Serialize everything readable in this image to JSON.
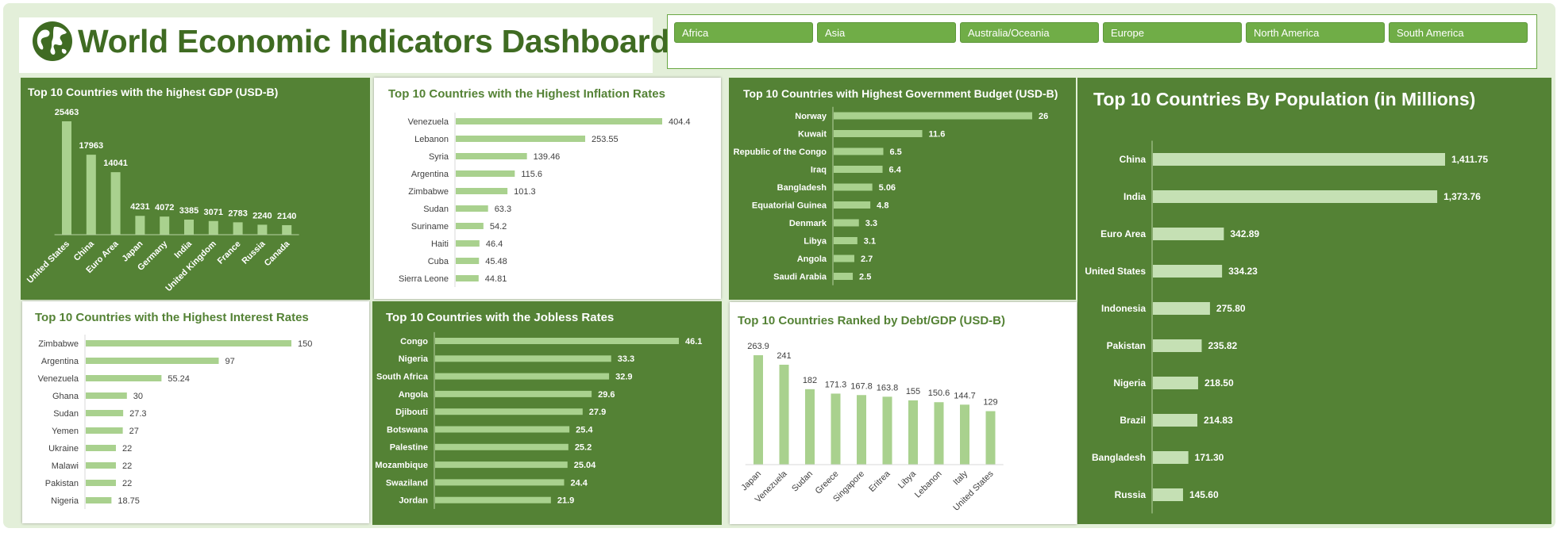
{
  "header": {
    "title": "World Economic Indicators Dashboard",
    "logo_icon": "globe-icon"
  },
  "slicer": {
    "items": [
      "Africa",
      "Asia",
      "Australia/Oceania",
      "Europe",
      "North America",
      "South America"
    ]
  },
  "colors": {
    "dark_panel": "#548235",
    "dark_bar": "#a9d18e",
    "light_bar": "#a9d18e",
    "light_title": "#548235",
    "population_bar": "#c5e0b4"
  },
  "chart_data": [
    {
      "id": "gdp",
      "type": "bar",
      "title": "Top 10 Countries with the highest GDP (USD-B)",
      "categories": [
        "United States",
        "China",
        "Euro Area",
        "Japan",
        "Germany",
        "India",
        "United Kingdom",
        "France",
        "Russia",
        "Canada"
      ],
      "values": [
        25463,
        17963,
        14041,
        4231,
        4072,
        3385,
        3071,
        2783,
        2240,
        2140
      ]
    },
    {
      "id": "inflation",
      "type": "bar",
      "orientation": "horizontal",
      "title": "Top 10 Countries with the Highest Inflation Rates",
      "categories": [
        "Venezuela",
        "Lebanon",
        "Syria",
        "Argentina",
        "Zimbabwe",
        "Sudan",
        "Suriname",
        "Haiti",
        "Cuba",
        "Sierra Leone"
      ],
      "values": [
        404.4,
        253.55,
        139.46,
        115.6,
        101.3,
        63.3,
        54.2,
        46.4,
        45.48,
        44.81
      ],
      "labels": [
        "404.4",
        "253.55",
        "139.46",
        "115.6",
        "101.3",
        "63.3",
        "54.2",
        "46.4",
        "45.48",
        "44.81"
      ]
    },
    {
      "id": "budget",
      "type": "bar",
      "orientation": "horizontal",
      "title": "Top 10 Countries with Highest Government Budget (USD-B)",
      "categories": [
        "Norway",
        "Kuwait",
        "Republic of the Congo",
        "Iraq",
        "Bangladesh",
        "Equatorial Guinea",
        "Denmark",
        "Libya",
        "Angola",
        "Saudi Arabia"
      ],
      "values": [
        26,
        11.6,
        6.5,
        6.4,
        5.06,
        4.8,
        3.3,
        3.1,
        2.7,
        2.5
      ],
      "labels": [
        "26",
        "11.6",
        "6.5",
        "6.4",
        "5.06",
        "4.8",
        "3.3",
        "3.1",
        "2.7",
        "2.5"
      ]
    },
    {
      "id": "population",
      "type": "bar",
      "orientation": "horizontal",
      "title": "Top 10 Countries By Population (in Millions)",
      "categories": [
        "China",
        "India",
        "Euro Area",
        "United States",
        "Indonesia",
        "Pakistan",
        "Nigeria",
        "Brazil",
        "Bangladesh",
        "Russia"
      ],
      "values": [
        1411.75,
        1373.76,
        342.89,
        334.23,
        275.8,
        235.82,
        218.5,
        214.83,
        171.3,
        145.6
      ],
      "labels": [
        "1,411.75",
        "1,373.76",
        "342.89",
        "334.23",
        "275.80",
        "235.82",
        "218.50",
        "214.83",
        "171.30",
        "145.60"
      ]
    },
    {
      "id": "interest",
      "type": "bar",
      "orientation": "horizontal",
      "title": "Top 10 Countries with the Highest Interest Rates",
      "categories": [
        "Zimbabwe",
        "Argentina",
        "Venezuela",
        "Ghana",
        "Sudan",
        "Yemen",
        "Ukraine",
        "Malawi",
        "Pakistan",
        "Nigeria"
      ],
      "values": [
        150,
        97,
        55.24,
        30,
        27.3,
        27,
        22,
        22,
        22,
        18.75
      ],
      "labels": [
        "150",
        "97",
        "55.24",
        "30",
        "27.3",
        "27",
        "22",
        "22",
        "22",
        "18.75"
      ]
    },
    {
      "id": "jobless",
      "type": "bar",
      "orientation": "horizontal",
      "title": "Top 10 Countries with the Jobless Rates",
      "categories": [
        "Congo",
        "Nigeria",
        "South Africa",
        "Angola",
        "Djibouti",
        "Botswana",
        "Palestine",
        "Mozambique",
        "Swaziland",
        "Jordan"
      ],
      "values": [
        46.1,
        33.3,
        32.9,
        29.6,
        27.9,
        25.4,
        25.2,
        25.04,
        24.4,
        21.9
      ],
      "labels": [
        "46.1",
        "33.3",
        "32.9",
        "29.6",
        "27.9",
        "25.4",
        "25.2",
        "25.04",
        "24.4",
        "21.9"
      ]
    },
    {
      "id": "debt",
      "type": "bar",
      "title": "Top 10 Countries Ranked by Debt/GDP (USD-B)",
      "categories": [
        "Japan",
        "Venezuela",
        "Sudan",
        "Greece",
        "Singapore",
        "Eritrea",
        "Libya",
        "Lebanon",
        "Italy",
        "United States"
      ],
      "values": [
        263.9,
        241,
        182,
        171.3,
        167.8,
        163.8,
        155,
        150.6,
        144.7,
        129
      ],
      "labels": [
        "263.9",
        "241",
        "182",
        "171.3",
        "167.8",
        "163.8",
        "155",
        "150.6",
        "144.7",
        "129"
      ]
    }
  ]
}
